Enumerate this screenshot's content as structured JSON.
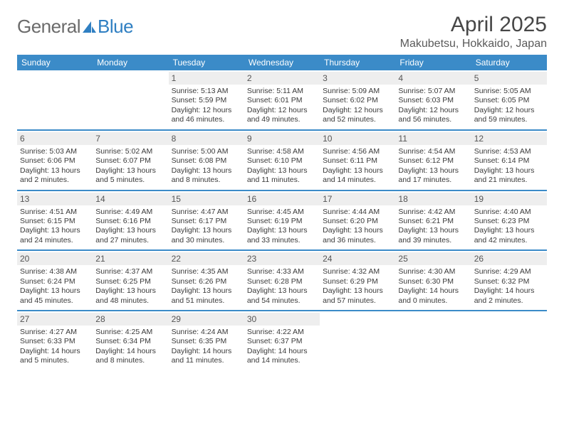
{
  "logo": {
    "text_gray": "General",
    "text_blue": "Blue"
  },
  "title": "April 2025",
  "location": "Makubetsu, Hokkaido, Japan",
  "colors": {
    "header_bar": "#3b8bc8",
    "daynum_bg": "#eeeeee",
    "text": "#3a3a3a",
    "title_text": "#474747",
    "logo_gray": "#6b6b6b",
    "logo_blue": "#2f7fc2"
  },
  "daysOfWeek": [
    "Sunday",
    "Monday",
    "Tuesday",
    "Wednesday",
    "Thursday",
    "Friday",
    "Saturday"
  ],
  "weeks": [
    [
      {
        "n": "",
        "sunrise": "",
        "sunset": "",
        "dl1": "",
        "dl2": ""
      },
      {
        "n": "",
        "sunrise": "",
        "sunset": "",
        "dl1": "",
        "dl2": ""
      },
      {
        "n": "1",
        "sunrise": "Sunrise: 5:13 AM",
        "sunset": "Sunset: 5:59 PM",
        "dl1": "Daylight: 12 hours",
        "dl2": "and 46 minutes."
      },
      {
        "n": "2",
        "sunrise": "Sunrise: 5:11 AM",
        "sunset": "Sunset: 6:01 PM",
        "dl1": "Daylight: 12 hours",
        "dl2": "and 49 minutes."
      },
      {
        "n": "3",
        "sunrise": "Sunrise: 5:09 AM",
        "sunset": "Sunset: 6:02 PM",
        "dl1": "Daylight: 12 hours",
        "dl2": "and 52 minutes."
      },
      {
        "n": "4",
        "sunrise": "Sunrise: 5:07 AM",
        "sunset": "Sunset: 6:03 PM",
        "dl1": "Daylight: 12 hours",
        "dl2": "and 56 minutes."
      },
      {
        "n": "5",
        "sunrise": "Sunrise: 5:05 AM",
        "sunset": "Sunset: 6:05 PM",
        "dl1": "Daylight: 12 hours",
        "dl2": "and 59 minutes."
      }
    ],
    [
      {
        "n": "6",
        "sunrise": "Sunrise: 5:03 AM",
        "sunset": "Sunset: 6:06 PM",
        "dl1": "Daylight: 13 hours",
        "dl2": "and 2 minutes."
      },
      {
        "n": "7",
        "sunrise": "Sunrise: 5:02 AM",
        "sunset": "Sunset: 6:07 PM",
        "dl1": "Daylight: 13 hours",
        "dl2": "and 5 minutes."
      },
      {
        "n": "8",
        "sunrise": "Sunrise: 5:00 AM",
        "sunset": "Sunset: 6:08 PM",
        "dl1": "Daylight: 13 hours",
        "dl2": "and 8 minutes."
      },
      {
        "n": "9",
        "sunrise": "Sunrise: 4:58 AM",
        "sunset": "Sunset: 6:10 PM",
        "dl1": "Daylight: 13 hours",
        "dl2": "and 11 minutes."
      },
      {
        "n": "10",
        "sunrise": "Sunrise: 4:56 AM",
        "sunset": "Sunset: 6:11 PM",
        "dl1": "Daylight: 13 hours",
        "dl2": "and 14 minutes."
      },
      {
        "n": "11",
        "sunrise": "Sunrise: 4:54 AM",
        "sunset": "Sunset: 6:12 PM",
        "dl1": "Daylight: 13 hours",
        "dl2": "and 17 minutes."
      },
      {
        "n": "12",
        "sunrise": "Sunrise: 4:53 AM",
        "sunset": "Sunset: 6:14 PM",
        "dl1": "Daylight: 13 hours",
        "dl2": "and 21 minutes."
      }
    ],
    [
      {
        "n": "13",
        "sunrise": "Sunrise: 4:51 AM",
        "sunset": "Sunset: 6:15 PM",
        "dl1": "Daylight: 13 hours",
        "dl2": "and 24 minutes."
      },
      {
        "n": "14",
        "sunrise": "Sunrise: 4:49 AM",
        "sunset": "Sunset: 6:16 PM",
        "dl1": "Daylight: 13 hours",
        "dl2": "and 27 minutes."
      },
      {
        "n": "15",
        "sunrise": "Sunrise: 4:47 AM",
        "sunset": "Sunset: 6:17 PM",
        "dl1": "Daylight: 13 hours",
        "dl2": "and 30 minutes."
      },
      {
        "n": "16",
        "sunrise": "Sunrise: 4:45 AM",
        "sunset": "Sunset: 6:19 PM",
        "dl1": "Daylight: 13 hours",
        "dl2": "and 33 minutes."
      },
      {
        "n": "17",
        "sunrise": "Sunrise: 4:44 AM",
        "sunset": "Sunset: 6:20 PM",
        "dl1": "Daylight: 13 hours",
        "dl2": "and 36 minutes."
      },
      {
        "n": "18",
        "sunrise": "Sunrise: 4:42 AM",
        "sunset": "Sunset: 6:21 PM",
        "dl1": "Daylight: 13 hours",
        "dl2": "and 39 minutes."
      },
      {
        "n": "19",
        "sunrise": "Sunrise: 4:40 AM",
        "sunset": "Sunset: 6:23 PM",
        "dl1": "Daylight: 13 hours",
        "dl2": "and 42 minutes."
      }
    ],
    [
      {
        "n": "20",
        "sunrise": "Sunrise: 4:38 AM",
        "sunset": "Sunset: 6:24 PM",
        "dl1": "Daylight: 13 hours",
        "dl2": "and 45 minutes."
      },
      {
        "n": "21",
        "sunrise": "Sunrise: 4:37 AM",
        "sunset": "Sunset: 6:25 PM",
        "dl1": "Daylight: 13 hours",
        "dl2": "and 48 minutes."
      },
      {
        "n": "22",
        "sunrise": "Sunrise: 4:35 AM",
        "sunset": "Sunset: 6:26 PM",
        "dl1": "Daylight: 13 hours",
        "dl2": "and 51 minutes."
      },
      {
        "n": "23",
        "sunrise": "Sunrise: 4:33 AM",
        "sunset": "Sunset: 6:28 PM",
        "dl1": "Daylight: 13 hours",
        "dl2": "and 54 minutes."
      },
      {
        "n": "24",
        "sunrise": "Sunrise: 4:32 AM",
        "sunset": "Sunset: 6:29 PM",
        "dl1": "Daylight: 13 hours",
        "dl2": "and 57 minutes."
      },
      {
        "n": "25",
        "sunrise": "Sunrise: 4:30 AM",
        "sunset": "Sunset: 6:30 PM",
        "dl1": "Daylight: 14 hours",
        "dl2": "and 0 minutes."
      },
      {
        "n": "26",
        "sunrise": "Sunrise: 4:29 AM",
        "sunset": "Sunset: 6:32 PM",
        "dl1": "Daylight: 14 hours",
        "dl2": "and 2 minutes."
      }
    ],
    [
      {
        "n": "27",
        "sunrise": "Sunrise: 4:27 AM",
        "sunset": "Sunset: 6:33 PM",
        "dl1": "Daylight: 14 hours",
        "dl2": "and 5 minutes."
      },
      {
        "n": "28",
        "sunrise": "Sunrise: 4:25 AM",
        "sunset": "Sunset: 6:34 PM",
        "dl1": "Daylight: 14 hours",
        "dl2": "and 8 minutes."
      },
      {
        "n": "29",
        "sunrise": "Sunrise: 4:24 AM",
        "sunset": "Sunset: 6:35 PM",
        "dl1": "Daylight: 14 hours",
        "dl2": "and 11 minutes."
      },
      {
        "n": "30",
        "sunrise": "Sunrise: 4:22 AM",
        "sunset": "Sunset: 6:37 PM",
        "dl1": "Daylight: 14 hours",
        "dl2": "and 14 minutes."
      },
      {
        "n": "",
        "sunrise": "",
        "sunset": "",
        "dl1": "",
        "dl2": ""
      },
      {
        "n": "",
        "sunrise": "",
        "sunset": "",
        "dl1": "",
        "dl2": ""
      },
      {
        "n": "",
        "sunrise": "",
        "sunset": "",
        "dl1": "",
        "dl2": ""
      }
    ]
  ]
}
